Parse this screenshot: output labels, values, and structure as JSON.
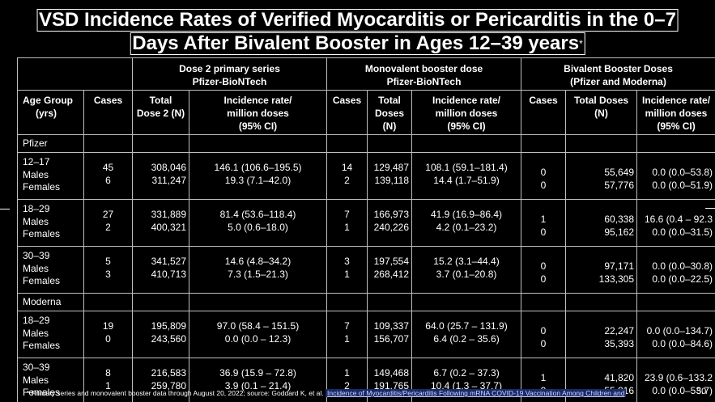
{
  "title": {
    "line1": "VSD Incidence Rates of Verified Myocarditis or Pericarditis in the 0–7",
    "line2": "Days After Bivalent Booster in Ages 12–39 years",
    "marker": "*"
  },
  "groups": {
    "dose2": {
      "line1": "Dose 2 primary series",
      "line2": "Pfizer-BioNTech"
    },
    "mono": {
      "line1": "Monovalent booster dose",
      "line2": "Pfizer-BioNTech"
    },
    "biv": {
      "line1": "Bivalent Booster Doses",
      "line2": "(Pfizer and Moderna)"
    }
  },
  "columns": {
    "age": {
      "line1": "Age Group",
      "line2": "(yrs)"
    },
    "cases": "Cases",
    "total_dose2": {
      "line1": "Total",
      "line2": "Dose 2 (N)"
    },
    "rate": {
      "line1": "Incidence rate/",
      "line2": "million doses",
      "line3": "(95% CI)"
    },
    "total_doses": {
      "line1": "Total",
      "line2": "Doses",
      "line3": "(N)"
    },
    "total_doses_biv": {
      "line1": "Total Doses",
      "line2": "(N)"
    },
    "rate_biv": {
      "line1": "Incidence rate/",
      "line2": "million doses",
      "line3": "(95% CI)"
    }
  },
  "sections": {
    "pfizer": "Pfizer",
    "moderna": "Moderna"
  },
  "rows": [
    {
      "age": "12–17",
      "sex1": "Males",
      "sex2": "Females",
      "d2_cases": [
        "45",
        "6"
      ],
      "d2_total": [
        "308,046",
        "311,247"
      ],
      "d2_rate": [
        "146.1 (106.6–195.5)",
        "19.3 (7.1–42.0)"
      ],
      "m_cases": [
        "14",
        "2"
      ],
      "m_total": [
        "129,487",
        "139,118"
      ],
      "m_rate": [
        "108.1 (59.1–181.4)",
        "14.4 (1.7–51.9)"
      ],
      "b_cases": [
        "0",
        "0"
      ],
      "b_total": [
        "55,649",
        "57,776"
      ],
      "b_rate": [
        "0.0 (0.0–53.8)",
        "0.0 (0.0–51.9)"
      ]
    },
    {
      "age": "18–29",
      "sex1": "Males",
      "sex2": "Females",
      "d2_cases": [
        "27",
        "2"
      ],
      "d2_total": [
        "331,889",
        "400,321"
      ],
      "d2_rate": [
        "81.4 (53.6–118.4)",
        "5.0 (0.6–18.0)"
      ],
      "m_cases": [
        "7",
        "1"
      ],
      "m_total": [
        "166,973",
        "240,226"
      ],
      "m_rate": [
        "41.9 (16.9–86.4)",
        "4.2 (0.1–23.2)"
      ],
      "b_cases": [
        "1",
        "0"
      ],
      "b_total": [
        "60,338",
        "95,162"
      ],
      "b_rate": [
        "16.6 (0.4 – 92.3",
        "0.0 (0.0–31.5)"
      ]
    },
    {
      "age": "30–39",
      "sex1": "Males",
      "sex2": "Females",
      "d2_cases": [
        "5",
        "3"
      ],
      "d2_total": [
        "341,527",
        "410,713"
      ],
      "d2_rate": [
        "14.6 (4.8–34.2)",
        "7.3 (1.5–21.3)"
      ],
      "m_cases": [
        "3",
        "1"
      ],
      "m_total": [
        "197,554",
        "268,412"
      ],
      "m_rate": [
        "15.2 (3.1–44.4)",
        "3.7 (0.1–20.8)"
      ],
      "b_cases": [
        "0",
        "0"
      ],
      "b_total": [
        "97,171",
        "133,305"
      ],
      "b_rate": [
        "0.0 (0.0–30.8)",
        "0.0 (0.0–22.5)"
      ]
    },
    {
      "age": "18–29",
      "sex1": "Males",
      "sex2": "Females",
      "d2_cases": [
        "19",
        "0"
      ],
      "d2_total": [
        "195,809",
        "243,560"
      ],
      "d2_rate": [
        "97.0 (58.4 – 151.5)",
        "0.0 (0.0 – 12.3)"
      ],
      "m_cases": [
        "7",
        "1"
      ],
      "m_total": [
        "109,337",
        "156,707"
      ],
      "m_rate": [
        "64.0 (25.7 – 131.9)",
        "6.4 (0.2 – 35.6)"
      ],
      "b_cases": [
        "0",
        "0"
      ],
      "b_total": [
        "22,247",
        "35,393"
      ],
      "b_rate": [
        "0.0 (0.0–134.7)",
        "0.0 (0.0–84.6)"
      ]
    },
    {
      "age": "30–39",
      "sex1": "Males",
      "sex2": "Females",
      "d2_cases": [
        "8",
        "1"
      ],
      "d2_total": [
        "216,583",
        "259,780"
      ],
      "d2_rate": [
        "36.9 (15.9 – 72.8)",
        "3.9 (0.1 – 21.4)"
      ],
      "m_cases": [
        "1",
        "2"
      ],
      "m_total": [
        "149,468",
        "191,765"
      ],
      "m_rate": [
        "6.7 (0.2 – 37.3)",
        "10.4 (1.3 – 37.7)"
      ],
      "b_cases": [
        "1",
        "0"
      ],
      "b_total": [
        "41,820",
        "55,816"
      ],
      "b_rate": [
        "23.9 (0.6–133.2",
        "0.0 (0.0–53.7)"
      ]
    }
  ],
  "footnote": {
    "text": "* Primary series and monovalent booster data through August 20, 2022;  source: Goddard K, et al.",
    "link": "Incidence of Myocarditis/Pericarditis Following mRNA COVID-19 Vaccination Among Children and"
  },
  "page_number": "50"
}
